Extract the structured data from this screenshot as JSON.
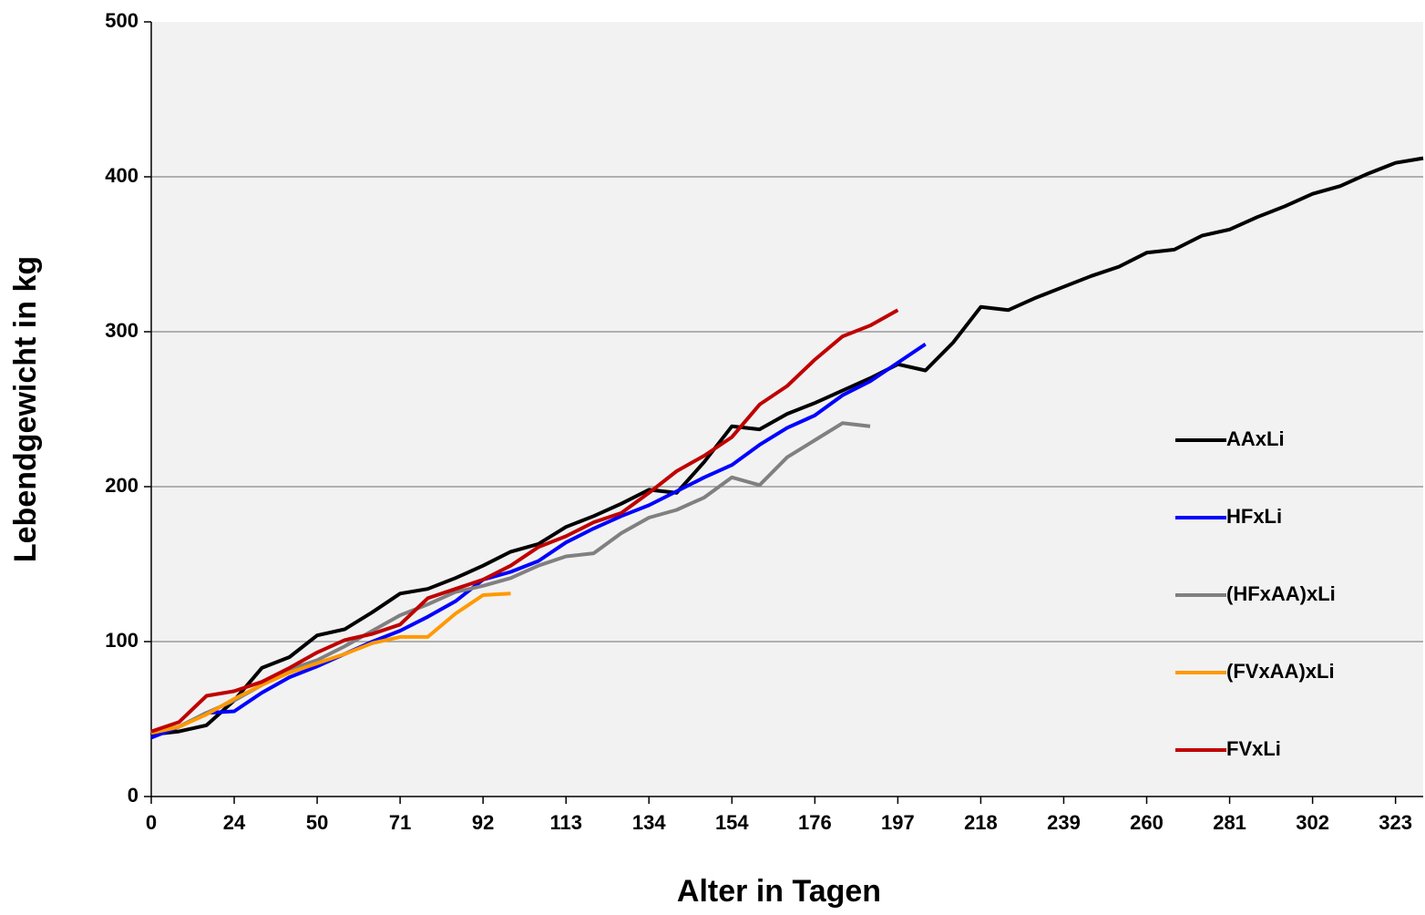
{
  "chart_data": {
    "type": "line",
    "x_label": "Alter in Tagen",
    "y_label": "Lebendgewicht in kg",
    "categories": [
      0,
      null,
      null,
      24,
      null,
      null,
      50,
      null,
      null,
      71,
      null,
      null,
      92,
      null,
      null,
      113,
      null,
      null,
      134,
      null,
      null,
      154,
      null,
      null,
      176,
      null,
      null,
      197,
      null,
      null,
      218,
      null,
      null,
      239,
      null,
      null,
      260,
      null,
      null,
      281,
      null,
      null,
      302,
      null,
      null,
      323,
      null
    ],
    "series": [
      {
        "name": "AAxLi",
        "color": "#000000",
        "values": [
          40,
          42,
          46,
          62,
          83,
          90,
          104,
          108,
          119,
          131,
          134,
          141,
          149,
          158,
          163,
          174,
          181,
          189,
          198,
          196,
          216,
          239,
          237,
          247,
          254,
          262,
          270,
          279,
          275,
          293,
          316,
          314,
          322,
          329,
          336,
          342,
          351,
          353,
          362,
          366,
          374,
          381,
          389,
          394,
          402,
          409,
          412
        ]
      },
      {
        "name": "HFxLi",
        "color": "#0000ff",
        "values": [
          38,
          45,
          54,
          55,
          67,
          77,
          84,
          92,
          100,
          107,
          116,
          126,
          140,
          145,
          152,
          164,
          173,
          181,
          188,
          197,
          206,
          214,
          227,
          238,
          246,
          259,
          268,
          280,
          292,
          null,
          null,
          null,
          null,
          null,
          null,
          null,
          null,
          null,
          null,
          null,
          null,
          null,
          null,
          null,
          null,
          null,
          null
        ]
      },
      {
        "name": "(HFxAA)xLi",
        "color": "#808080",
        "values": [
          41,
          45,
          54,
          62,
          72,
          82,
          88,
          97,
          107,
          117,
          124,
          132,
          136,
          141,
          149,
          155,
          157,
          170,
          180,
          185,
          193,
          206,
          201,
          219,
          230,
          241,
          239,
          null,
          null,
          null,
          null,
          null,
          null,
          null,
          null,
          null,
          null,
          null,
          null,
          null,
          null,
          null,
          null,
          null,
          null,
          null,
          null
        ]
      },
      {
        "name": "(FVxAA)xLi",
        "color": "#ff9900",
        "values": [
          41,
          45,
          53,
          63,
          72,
          80,
          86,
          92,
          99,
          103,
          103,
          118,
          130,
          131,
          null,
          null,
          null,
          null,
          null,
          null,
          null,
          null,
          null,
          null,
          null,
          null,
          null,
          null,
          null,
          null,
          null,
          null,
          null,
          null,
          null,
          null,
          null,
          null,
          null,
          null,
          null,
          null,
          null,
          null,
          null,
          null,
          null
        ]
      },
      {
        "name": "FVxLi",
        "color": "#c00000",
        "values": [
          42,
          48,
          65,
          68,
          74,
          83,
          93,
          101,
          105,
          111,
          128,
          134,
          140,
          149,
          161,
          168,
          177,
          183,
          196,
          210,
          220,
          232,
          253,
          265,
          282,
          297,
          304,
          314,
          null,
          null,
          null,
          null,
          null,
          null,
          null,
          null,
          null,
          null,
          null,
          null,
          null,
          null,
          null,
          null,
          null,
          null,
          null
        ]
      }
    ],
    "ylim": [
      0,
      500
    ],
    "yticks": [
      0,
      100,
      200,
      300,
      400,
      500
    ],
    "grid": true,
    "legend": "right"
  }
}
